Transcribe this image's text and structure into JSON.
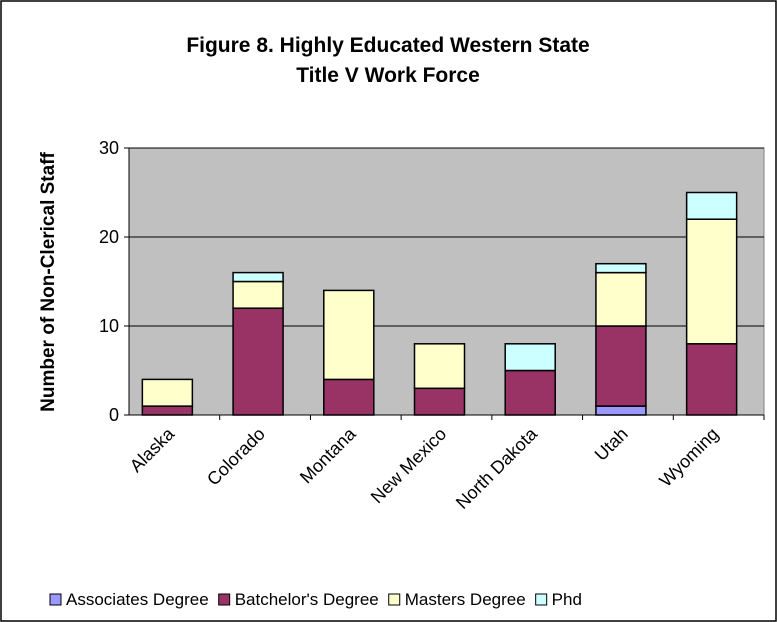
{
  "chart_data": {
    "type": "stacked_bar",
    "title": [
      "Figure 8.  Highly Educated Western State",
      "Title V Work Force"
    ],
    "y_label": "Number of Non-Clerical Staff",
    "categories": [
      "Alaska",
      "Colorado",
      "Montana",
      "New Mexico",
      "North Dakota",
      "Utah",
      "Wyoming"
    ],
    "series": [
      {
        "name": "Associates Degree",
        "color": "#9999ff",
        "values": [
          0,
          0,
          0,
          0,
          0,
          1,
          0
        ]
      },
      {
        "name": "Batchelor's Degree",
        "color": "#993366",
        "values": [
          1,
          12,
          4,
          3,
          5,
          9,
          8
        ]
      },
      {
        "name": "Masters Degree",
        "color": "#ffffcc",
        "values": [
          3,
          3,
          10,
          5,
          0,
          6,
          14
        ]
      },
      {
        "name": "Phd",
        "color": "#ccffff",
        "values": [
          0,
          1,
          0,
          0,
          3,
          1,
          3
        ]
      }
    ],
    "ylim": [
      0,
      30
    ],
    "yticks": [
      0,
      10,
      20,
      30
    ],
    "grid": true,
    "legend": "bottom"
  }
}
